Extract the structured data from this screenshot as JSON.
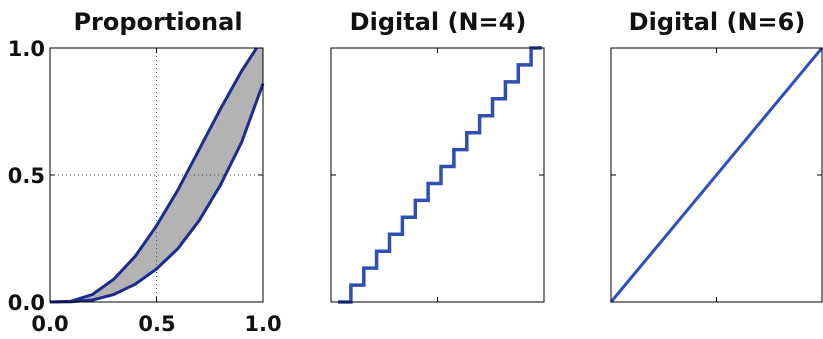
{
  "chart_data": [
    {
      "type": "area",
      "title": "Proportional",
      "xlim": [
        0,
        1
      ],
      "ylim": [
        0,
        1
      ],
      "xticks": [
        "0.0",
        "0.5",
        "1.0"
      ],
      "yticks": [
        "0.0",
        "0.5",
        "1.0"
      ],
      "grid": "dotted lines at 0.5",
      "fill_color": "#b3b3b3",
      "line_color": "#1c2b8e",
      "upper_curve": {
        "x": [
          0.0,
          0.1,
          0.2,
          0.3,
          0.4,
          0.5,
          0.6,
          0.7,
          0.8,
          0.9,
          0.97
        ],
        "y": [
          0.0,
          0.003,
          0.03,
          0.09,
          0.18,
          0.3,
          0.44,
          0.6,
          0.76,
          0.91,
          1.0
        ]
      },
      "lower_curve": {
        "x": [
          0.0,
          0.1,
          0.2,
          0.3,
          0.4,
          0.5,
          0.6,
          0.7,
          0.8,
          0.9,
          1.0
        ],
        "y": [
          0.0,
          0.001,
          0.008,
          0.03,
          0.07,
          0.13,
          0.21,
          0.32,
          0.46,
          0.63,
          0.86
        ]
      }
    },
    {
      "type": "line",
      "title": "Digital (N=4)",
      "xlim": [
        0,
        1
      ],
      "ylim": [
        0,
        1
      ],
      "xticks": [],
      "yticks": [],
      "line_color": "#2f4fb5",
      "steps": 16,
      "x": [
        0.0,
        0.0625,
        0.125,
        0.1875,
        0.25,
        0.3125,
        0.375,
        0.4375,
        0.5,
        0.5625,
        0.625,
        0.6875,
        0.75,
        0.8125,
        0.875,
        0.9375
      ],
      "y": [
        0.0,
        0.0667,
        0.1333,
        0.2,
        0.2667,
        0.3333,
        0.4,
        0.4667,
        0.5333,
        0.6,
        0.6667,
        0.7333,
        0.8,
        0.8667,
        0.9333,
        1.0
      ]
    },
    {
      "type": "line",
      "title": "Digital (N=6)",
      "xlim": [
        0,
        1
      ],
      "ylim": [
        0,
        1
      ],
      "xticks": [],
      "yticks": [],
      "line_color": "#2d4fc0",
      "x": [
        0.0,
        1.0
      ],
      "y": [
        0.0,
        1.0
      ]
    }
  ]
}
